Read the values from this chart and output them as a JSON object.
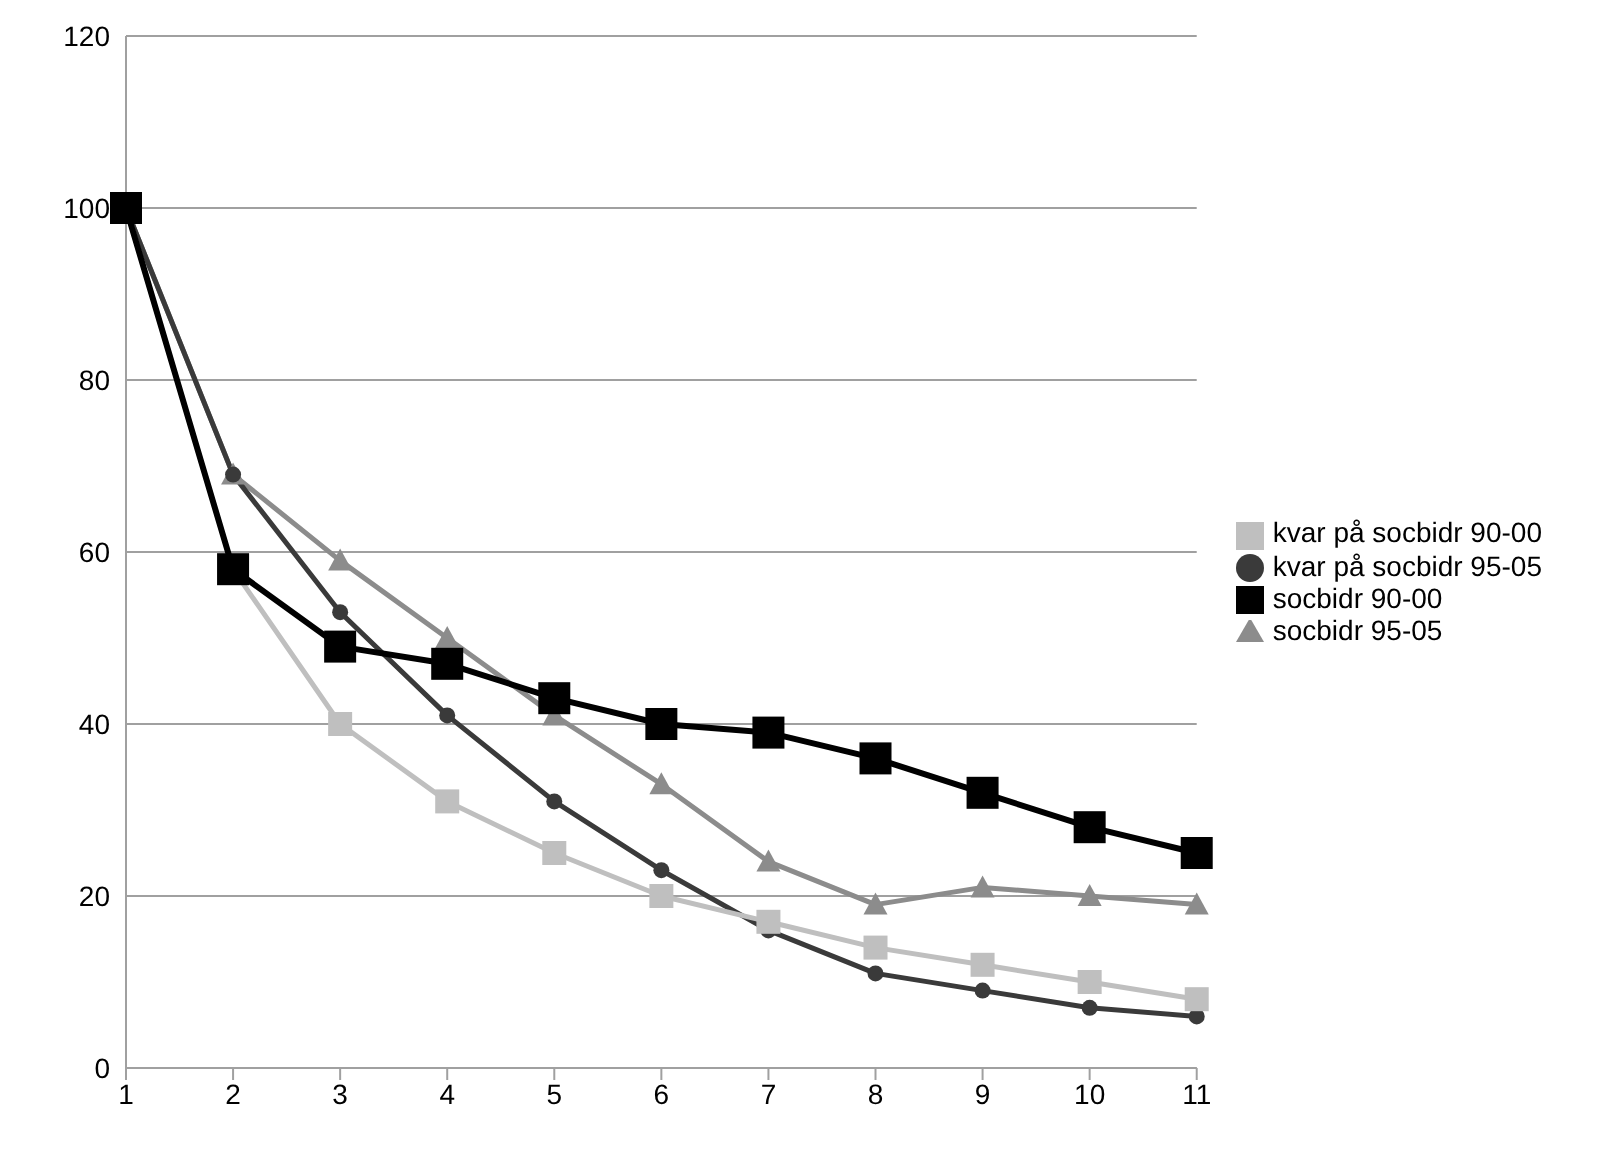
{
  "chart_data": {
    "type": "line",
    "categories": [
      "1",
      "2",
      "3",
      "4",
      "5",
      "6",
      "7",
      "8",
      "9",
      "10",
      "11"
    ],
    "series": [
      {
        "name": "socbidr 95-05",
        "color": "#8c8c8c",
        "marker": "triangle",
        "values": [
          100,
          69,
          59,
          50,
          41,
          33,
          24,
          19,
          21,
          20,
          19
        ]
      },
      {
        "name": "kvar på socbidr 95-05",
        "color": "#3a3a3a",
        "marker": "circle",
        "values": [
          100,
          69,
          53,
          41,
          31,
          23,
          16,
          11,
          9,
          7,
          6
        ]
      },
      {
        "name": "kvar på socbidr 90-00",
        "color": "#bfbfbf",
        "marker": "square",
        "values": [
          100,
          58,
          40,
          31,
          25,
          20,
          17,
          14,
          12,
          10,
          8
        ]
      },
      {
        "name": "socbidr 90-00",
        "color": "#000000",
        "marker": "square",
        "values": [
          100,
          58,
          49,
          47,
          43,
          40,
          39,
          36,
          32,
          28,
          25
        ]
      }
    ],
    "ylim": [
      0,
      120
    ],
    "yticks": [
      0,
      20,
      40,
      60,
      80,
      100,
      120
    ],
    "grid": "y",
    "legend": "right"
  }
}
